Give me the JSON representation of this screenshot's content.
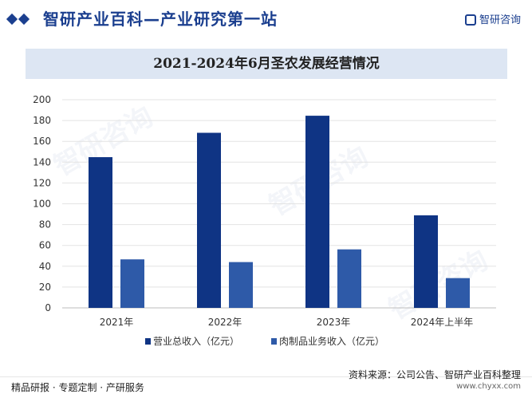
{
  "header": {
    "site_title": "智研产业百科—产业研究第一站",
    "brand": "智研咨询"
  },
  "watermark": "智研咨询",
  "chart_data": {
    "type": "bar",
    "title": "2021-2024年6月圣农发展经营情况",
    "categories": [
      "2021年",
      "2022年",
      "2023年",
      "2024年上半年"
    ],
    "series": [
      {
        "name": "营业总收入（亿元）",
        "values": [
          144.8,
          168.2,
          184.6,
          88.9
        ],
        "color": "#0f3484"
      },
      {
        "name": "肉制品业务收入（亿元）",
        "values": [
          46.6,
          44.0,
          56.2,
          28.6
        ],
        "color": "#2e5aa8"
      }
    ],
    "ylim": [
      0,
      200
    ],
    "yticks": [
      0,
      20,
      40,
      60,
      80,
      100,
      120,
      140,
      160,
      180,
      200
    ],
    "legend_position": "bottom",
    "grid": true
  },
  "footer": {
    "left_text": "精品研报 · 专题定制 · 产研服务",
    "source": "资料来源：公司公告、智研产业百科整理",
    "url": "www.chyxx.com"
  }
}
